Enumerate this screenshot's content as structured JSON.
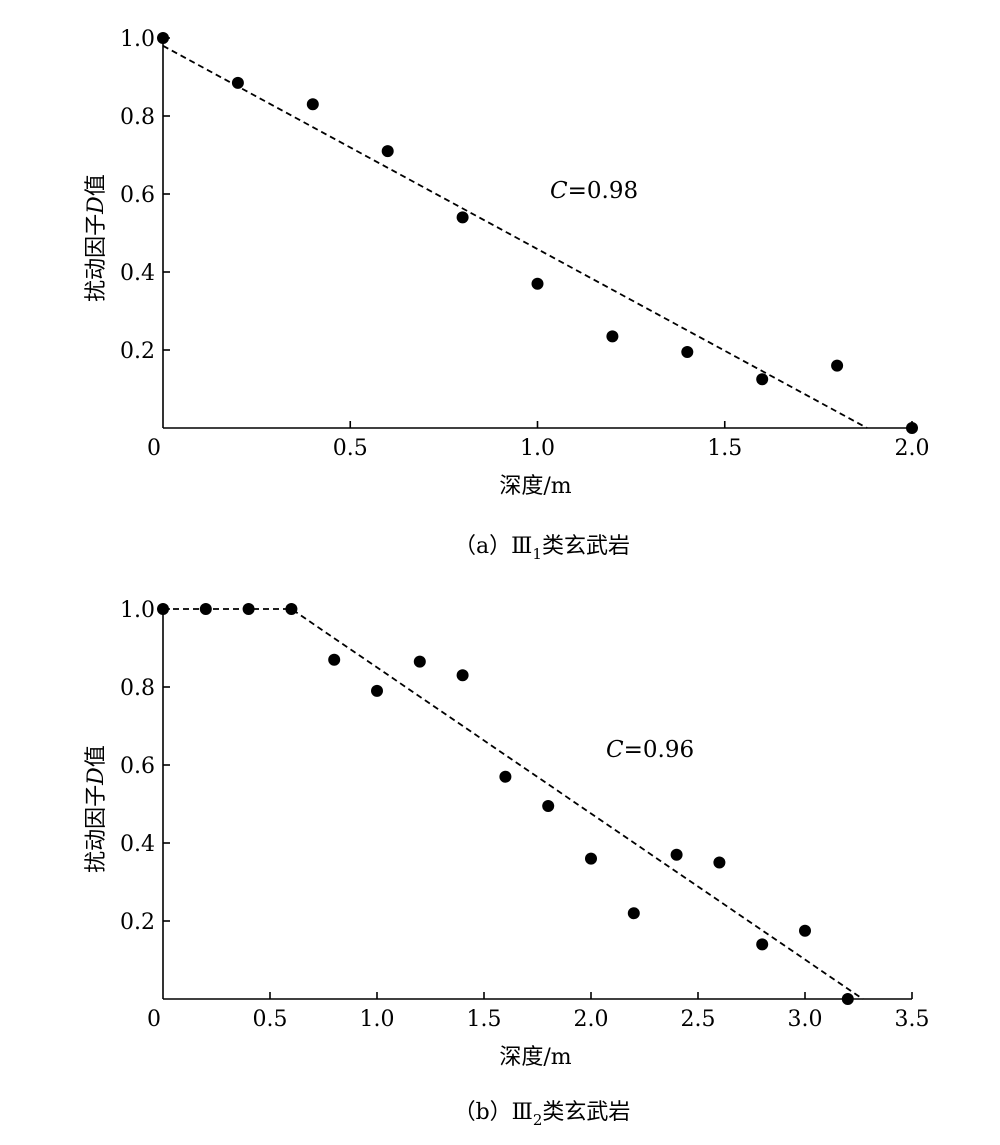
{
  "chart_data": [
    {
      "type": "scatter",
      "panel": "a",
      "caption": "（a）Ⅲ₁类玄武岩",
      "caption_parts": {
        "label": "（a）",
        "grade": "Ⅲ",
        "sub": "1",
        "rock": "类玄武岩"
      },
      "xlabel": "深度/m",
      "ylabel": "扰动因子D值",
      "ylabel_parts": {
        "pre": "扰动因子",
        "var": "D",
        "post": "值"
      },
      "annotation": {
        "var": "C",
        "text": "=0.98"
      },
      "xlim": [
        0,
        2.0
      ],
      "ylim": [
        0,
        1.0
      ],
      "x_ticks": [
        0,
        0.5,
        1.0,
        1.5,
        2.0
      ],
      "x_tick_labels": [
        "0",
        "0.5",
        "1.0",
        "1.5",
        "2.0"
      ],
      "y_ticks": [
        0.2,
        0.4,
        0.6,
        0.8,
        1.0
      ],
      "y_tick_labels": [
        "0.2",
        "0.4",
        "0.6",
        "0.8",
        "1.0"
      ],
      "grid": false,
      "points": [
        {
          "x": 0.0,
          "y": 1.0
        },
        {
          "x": 0.2,
          "y": 0.885
        },
        {
          "x": 0.4,
          "y": 0.83
        },
        {
          "x": 0.6,
          "y": 0.71
        },
        {
          "x": 0.8,
          "y": 0.54
        },
        {
          "x": 1.0,
          "y": 0.37
        },
        {
          "x": 1.2,
          "y": 0.235
        },
        {
          "x": 1.4,
          "y": 0.195
        },
        {
          "x": 1.6,
          "y": 0.125
        },
        {
          "x": 1.8,
          "y": 0.16
        },
        {
          "x": 2.0,
          "y": 0.0
        }
      ],
      "fit_line": [
        {
          "x": 0.0,
          "y": 0.98
        },
        {
          "x": 1.88,
          "y": 0.0
        }
      ]
    },
    {
      "type": "scatter",
      "panel": "b",
      "caption": "（b）Ⅲ₂类玄武岩",
      "caption_parts": {
        "label": "（b）",
        "grade": "Ⅲ",
        "sub": "2",
        "rock": "类玄武岩"
      },
      "xlabel": "深度/m",
      "ylabel": "扰动因子D值",
      "ylabel_parts": {
        "pre": "扰动因子",
        "var": "D",
        "post": "值"
      },
      "annotation": {
        "var": "C",
        "text": "=0.96"
      },
      "xlim": [
        0,
        3.5
      ],
      "ylim": [
        0,
        1.0
      ],
      "x_ticks": [
        0,
        0.5,
        1.0,
        1.5,
        2.0,
        2.5,
        3.0,
        3.5
      ],
      "x_tick_labels": [
        "0",
        "0.5",
        "1.0",
        "1.5",
        "2.0",
        "2.5",
        "3.0",
        "3.5"
      ],
      "y_ticks": [
        0.2,
        0.4,
        0.6,
        0.8,
        1.0
      ],
      "y_tick_labels": [
        "0.2",
        "0.4",
        "0.6",
        "0.8",
        "1.0"
      ],
      "grid": false,
      "points": [
        {
          "x": 0.0,
          "y": 1.0
        },
        {
          "x": 0.2,
          "y": 1.0
        },
        {
          "x": 0.4,
          "y": 1.0
        },
        {
          "x": 0.6,
          "y": 1.0
        },
        {
          "x": 0.8,
          "y": 0.87
        },
        {
          "x": 1.0,
          "y": 0.79
        },
        {
          "x": 1.2,
          "y": 0.865
        },
        {
          "x": 1.4,
          "y": 0.83
        },
        {
          "x": 1.6,
          "y": 0.57
        },
        {
          "x": 1.8,
          "y": 0.495
        },
        {
          "x": 2.0,
          "y": 0.36
        },
        {
          "x": 2.2,
          "y": 0.22
        },
        {
          "x": 2.4,
          "y": 0.37
        },
        {
          "x": 2.6,
          "y": 0.35
        },
        {
          "x": 2.8,
          "y": 0.14
        },
        {
          "x": 3.0,
          "y": 0.175
        },
        {
          "x": 3.2,
          "y": 0.0
        }
      ],
      "fit_line": [
        {
          "x": 0.0,
          "y": 1.0
        },
        {
          "x": 0.6,
          "y": 1.0
        },
        {
          "x": 3.27,
          "y": 0.0
        }
      ]
    }
  ]
}
